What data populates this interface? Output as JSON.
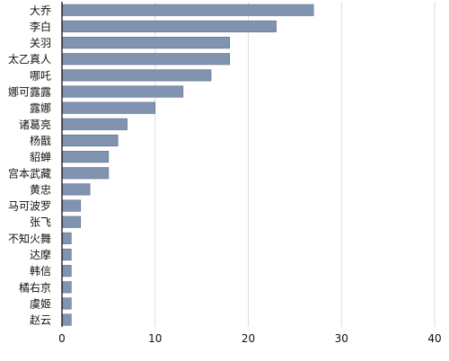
{
  "chart_data": {
    "type": "bar",
    "orientation": "horizontal",
    "categories": [
      "大乔",
      "李白",
      "关羽",
      "太乙真人",
      "哪吒",
      "娜可露露",
      "露娜",
      "诸葛亮",
      "杨戬",
      "貂蝉",
      "宫本武藏",
      "黄忠",
      "马可波罗",
      "张飞",
      "不知火舞",
      "达摩",
      "韩信",
      "橘右京",
      "虞姬",
      "赵云"
    ],
    "values": [
      27,
      23,
      18,
      18,
      16,
      13,
      10,
      7,
      6,
      5,
      5,
      3,
      2,
      2,
      1,
      1,
      1,
      1,
      1,
      1
    ],
    "xlim": [
      0,
      40
    ],
    "xticks": [
      0,
      10,
      20,
      30,
      40
    ],
    "grid": "vertical",
    "bar_color": "#8093b1",
    "title": "",
    "xlabel": "",
    "ylabel": ""
  }
}
